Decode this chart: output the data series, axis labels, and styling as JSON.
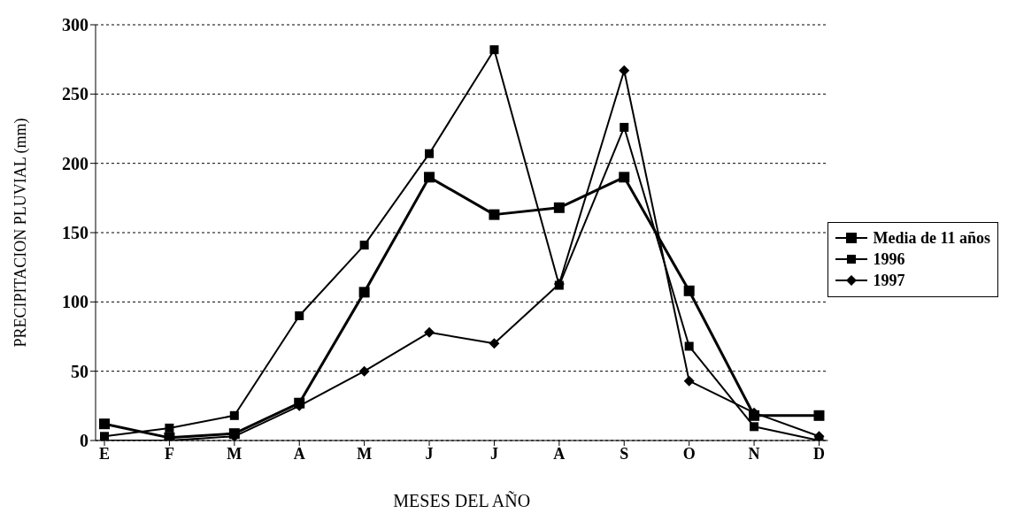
{
  "chart_data": {
    "type": "line",
    "xlabel": "MESES DEL AÑO",
    "ylabel": "PRECIPITACION PLUVIAL (mm)",
    "categories": [
      "E",
      "F",
      "M",
      "A",
      "M",
      "J",
      "J",
      "A",
      "S",
      "O",
      "N",
      "D"
    ],
    "series": [
      {
        "name": "Media de 11 años",
        "color": "#000000",
        "marker": "square",
        "values": [
          12,
          2,
          5,
          27,
          107,
          190,
          163,
          168,
          190,
          108,
          18,
          18
        ]
      },
      {
        "name": "1996",
        "color": "#000000",
        "marker": "square",
        "values": [
          3,
          9,
          18,
          90,
          141,
          207,
          282,
          112,
          226,
          68,
          10,
          0
        ]
      },
      {
        "name": "1997",
        "color": "#000000",
        "marker": "diamond",
        "values": [
          0,
          0,
          3,
          25,
          50,
          78,
          70,
          113,
          267,
          43,
          20,
          3
        ]
      }
    ],
    "ylim": [
      0,
      300
    ],
    "yticks": [
      0,
      50,
      100,
      150,
      200,
      250,
      300
    ],
    "grid": "y",
    "legend": "right",
    "line_style": "solid"
  }
}
